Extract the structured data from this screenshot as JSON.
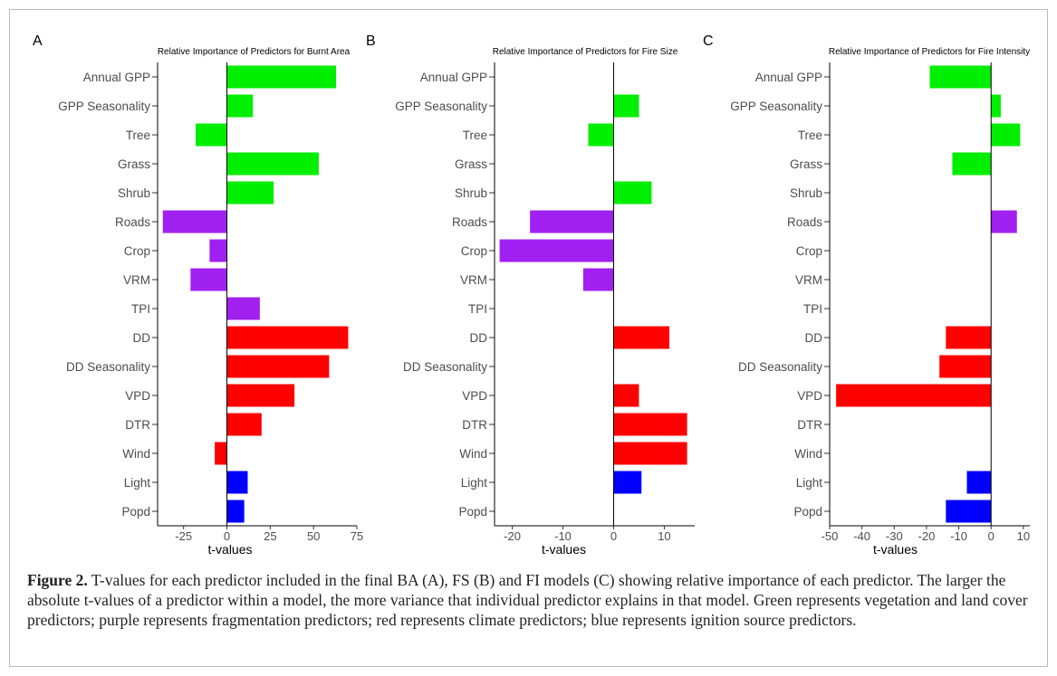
{
  "figure": {
    "caption_label": "Figure 2.",
    "caption_text": " T-values for each predictor included in the final BA (A), FS (B) and FI models (C) showing relative importance of each predictor. The larger the absolute t-values of a predictor within a model, the more variance that individual predictor explains in that model. Green represents vegetation and land cover predictors; purple represents fragmentation predictors; red represents climate predictors; blue represents ignition source predictors."
  },
  "colors": {
    "vegetation": "#00ee00",
    "fragmentation": "#a020f0",
    "climate": "#ff0000",
    "ignition": "#0000ff"
  },
  "chart_data": [
    {
      "type": "bar",
      "orientation": "horizontal",
      "panel_label": "A",
      "title": "Relative Importance of Predictors for Burnt Area",
      "xlabel": "t-values",
      "ylabel": "",
      "xlim": [
        -40,
        75
      ],
      "xticks": [
        -25,
        0,
        25,
        50,
        75
      ],
      "xtick_labels": [
        "-25",
        "0",
        "25",
        "50",
        "75"
      ],
      "categories": [
        "Annual GPP",
        "GPP Seasonality",
        "Tree",
        "Grass",
        "Shrub",
        "Roads",
        "Crop",
        "VRM",
        "TPI",
        "DD",
        "DD Seasonality",
        "VPD",
        "DTR",
        "Wind",
        "Light",
        "Popd"
      ],
      "groups": [
        "vegetation",
        "vegetation",
        "vegetation",
        "vegetation",
        "vegetation",
        "fragmentation",
        "fragmentation",
        "fragmentation",
        "fragmentation",
        "climate",
        "climate",
        "climate",
        "climate",
        "climate",
        "ignition",
        "ignition"
      ],
      "values": [
        63,
        15,
        -18,
        53,
        27,
        -37,
        -10,
        -21,
        19,
        70,
        59,
        39,
        20,
        -7,
        12,
        10
      ],
      "grid": false
    },
    {
      "type": "bar",
      "orientation": "horizontal",
      "panel_label": "B",
      "title": "Relative Importance of Predictors for Fire Size",
      "xlabel": "t-values",
      "ylabel": "",
      "xlim": [
        -23.5,
        16
      ],
      "xticks": [
        -20,
        -10,
        0,
        10
      ],
      "xtick_labels": [
        "-20",
        "-10",
        "0",
        "10"
      ],
      "categories": [
        "Annual GPP",
        "GPP Seasonality",
        "Tree",
        "Grass",
        "Shrub",
        "Roads",
        "Crop",
        "VRM",
        "TPI",
        "DD",
        "DD Seasonality",
        "VPD",
        "DTR",
        "Wind",
        "Light",
        "Popd"
      ],
      "groups": [
        "vegetation",
        "vegetation",
        "vegetation",
        "vegetation",
        "vegetation",
        "fragmentation",
        "fragmentation",
        "fragmentation",
        "fragmentation",
        "climate",
        "climate",
        "climate",
        "climate",
        "climate",
        "ignition",
        "ignition"
      ],
      "values": [
        0,
        5,
        -5,
        0,
        7.5,
        -16.5,
        -22.5,
        -6,
        0,
        11,
        0,
        5,
        14.5,
        14.5,
        5.5,
        0
      ],
      "grid": false
    },
    {
      "type": "bar",
      "orientation": "horizontal",
      "panel_label": "C",
      "title": "Relative Importance of Predictors for Fire Intensity",
      "xlabel": "t-values",
      "ylabel": "",
      "xlim": [
        -50,
        12
      ],
      "xticks": [
        -50,
        -40,
        -30,
        -20,
        -10,
        0,
        10
      ],
      "xtick_labels": [
        "-50",
        "-40",
        "-30",
        "-20",
        "-10",
        "0",
        "10"
      ],
      "categories": [
        "Annual GPP",
        "GPP Seasonality",
        "Tree",
        "Grass",
        "Shrub",
        "Roads",
        "Crop",
        "VRM",
        "TPI",
        "DD",
        "DD Seasonality",
        "VPD",
        "DTR",
        "Wind",
        "Light",
        "Popd"
      ],
      "groups": [
        "vegetation",
        "vegetation",
        "vegetation",
        "vegetation",
        "vegetation",
        "fragmentation",
        "fragmentation",
        "fragmentation",
        "fragmentation",
        "climate",
        "climate",
        "climate",
        "climate",
        "climate",
        "ignition",
        "ignition"
      ],
      "values": [
        -19,
        3,
        9,
        -12,
        0,
        8,
        0,
        0,
        0,
        -14,
        -16,
        -48,
        0,
        0,
        -7.5,
        -14
      ],
      "grid": false
    }
  ]
}
